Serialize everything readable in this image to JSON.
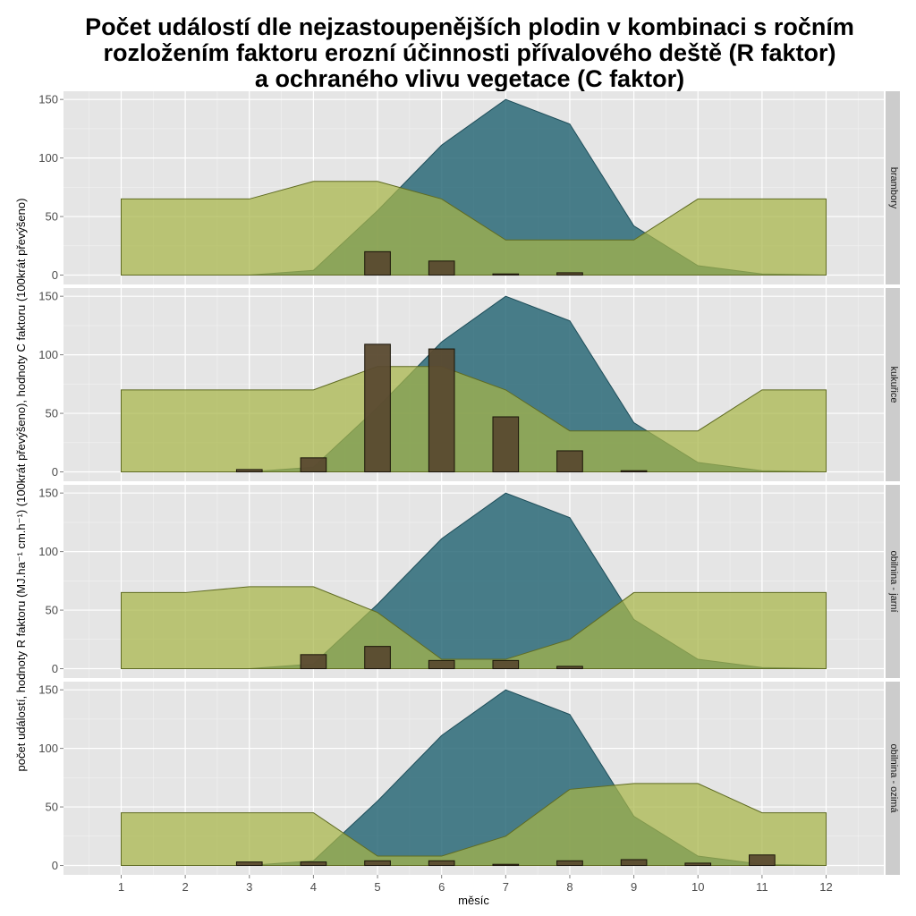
{
  "chart_data": {
    "type": "area",
    "title_lines": [
      "Počet událostí dle nejzastoupenějších plodin v kombinaci s ročním",
      "rozložením faktoru erozní účinnosti přívalového deště (R faktor)",
      "a ochraného vlivu vegetace (C faktor)"
    ],
    "xlabel": "měsíc",
    "ylabel": "počet událostí, hodnoty R faktoru (MJ.ha⁻¹ cm.h⁻¹) (100krát převýšeno), hodnoty C faktoru (100krát převýšeno)",
    "x_ticks": [
      "1",
      "2",
      "3",
      "4",
      "5",
      "6",
      "7",
      "8",
      "9",
      "10",
      "11",
      "12"
    ],
    "y_ticks": [
      "0",
      "50",
      "100",
      "150"
    ],
    "xlim": [
      0.1,
      12.9
    ],
    "ylim": [
      -8,
      157
    ],
    "grid": true,
    "months": [
      1,
      2,
      3,
      4,
      5,
      6,
      7,
      8,
      9,
      10,
      11,
      12
    ],
    "r_factor": [
      0,
      0,
      0,
      4,
      55,
      111,
      150,
      129,
      42,
      8,
      1,
      0
    ],
    "colors": {
      "panel_bg": "#e5e5e5",
      "grid_major": "#ffffff",
      "grid_minor": "#f2f2f2",
      "strip_bg": "#cccccc",
      "r_fill": "#2b6a78",
      "r_stroke": "#1f4e5a",
      "c_fill": "#a8b548",
      "c_stroke": "#5f6b22",
      "bar_fill": "#5a4a30",
      "bar_stroke": "#1a1408"
    },
    "panels": [
      {
        "name": "brambory",
        "c_factor": [
          65,
          65,
          65,
          80,
          80,
          65,
          30,
          30,
          30,
          65,
          65,
          65
        ],
        "events": [
          {
            "month": 5,
            "count": 20
          },
          {
            "month": 6,
            "count": 12
          },
          {
            "month": 7,
            "count": 1
          },
          {
            "month": 8,
            "count": 2
          }
        ]
      },
      {
        "name": "kukuřice",
        "c_factor": [
          70,
          70,
          70,
          70,
          90,
          90,
          70,
          35,
          35,
          35,
          70,
          70
        ],
        "events": [
          {
            "month": 3,
            "count": 2
          },
          {
            "month": 4,
            "count": 12
          },
          {
            "month": 5,
            "count": 109
          },
          {
            "month": 6,
            "count": 105
          },
          {
            "month": 7,
            "count": 47
          },
          {
            "month": 8,
            "count": 18
          },
          {
            "month": 9,
            "count": 1
          }
        ]
      },
      {
        "name": "obilnina - jarní",
        "c_factor": [
          65,
          65,
          70,
          70,
          48,
          8,
          8,
          25,
          65,
          65,
          65,
          65
        ],
        "events": [
          {
            "month": 4,
            "count": 12
          },
          {
            "month": 5,
            "count": 19
          },
          {
            "month": 6,
            "count": 7
          },
          {
            "month": 7,
            "count": 7
          },
          {
            "month": 8,
            "count": 2
          }
        ]
      },
      {
        "name": "obilnina - ozimá",
        "c_factor": [
          45,
          45,
          45,
          45,
          8,
          8,
          25,
          65,
          70,
          70,
          45,
          45
        ],
        "events": [
          {
            "month": 3,
            "count": 3
          },
          {
            "month": 4,
            "count": 3
          },
          {
            "month": 5,
            "count": 4
          },
          {
            "month": 6,
            "count": 4
          },
          {
            "month": 7,
            "count": 1
          },
          {
            "month": 8,
            "count": 4
          },
          {
            "month": 9,
            "count": 5
          },
          {
            "month": 10,
            "count": 2
          },
          {
            "month": 11,
            "count": 9
          }
        ]
      }
    ]
  }
}
